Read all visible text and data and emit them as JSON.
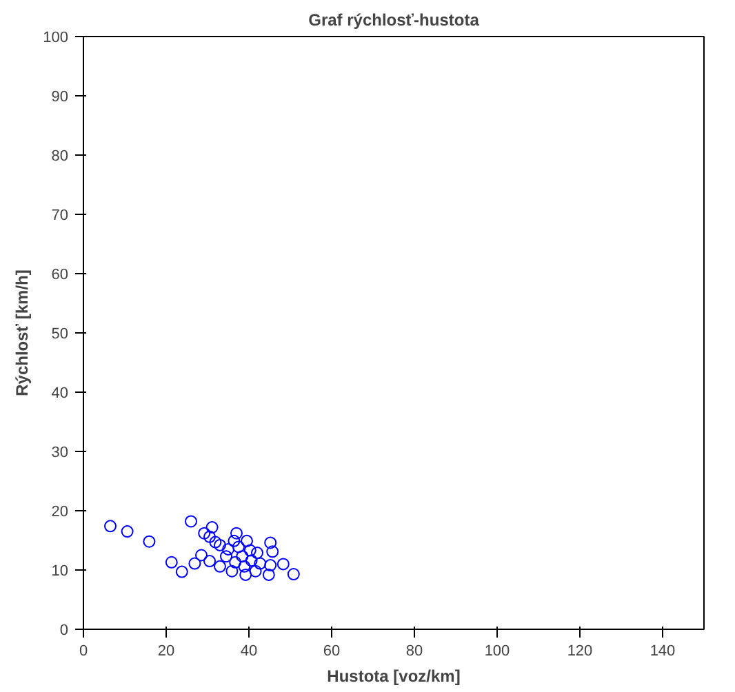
{
  "chart_data": {
    "type": "scatter",
    "title": "Graf rýchlosť-hustota",
    "xlabel": "Hustota [voz/km]",
    "ylabel": "Rýchlosť [km/h]",
    "xlim": [
      0,
      150
    ],
    "ylim": [
      0,
      100
    ],
    "xticks": [
      0,
      20,
      40,
      60,
      80,
      100,
      120,
      140
    ],
    "yticks": [
      0,
      10,
      20,
      30,
      40,
      50,
      60,
      70,
      80,
      90,
      100
    ],
    "grid": false,
    "marker": "circle",
    "series": [
      {
        "color": "#0000ff",
        "x": [
          6.5,
          10.6,
          15.9,
          21.3,
          23.8,
          26,
          26.9,
          28.5,
          29.2,
          30.5,
          31.1,
          30.5,
          31.9,
          33,
          33,
          34.5,
          35,
          35.9,
          36.4,
          37,
          36.7,
          37.5,
          38.4,
          38.9,
          39.2,
          39.5,
          40.3,
          40.6,
          41.6,
          42,
          42.7,
          44.8,
          45.2,
          45.7,
          45.2,
          48.3,
          50.8
        ],
        "values": [
          17.4,
          16.5,
          14.8,
          11.3,
          9.7,
          18.2,
          11.1,
          12.5,
          16.2,
          15.6,
          17.2,
          11.5,
          14.7,
          14.2,
          10.6,
          12.3,
          13.5,
          9.8,
          14.9,
          16.2,
          11.3,
          13.9,
          12.3,
          10.6,
          9.2,
          14.9,
          13.3,
          11.6,
          9.8,
          12.9,
          11.1,
          9.2,
          14.6,
          13.1,
          10.8,
          11,
          9.3
        ]
      }
    ]
  }
}
